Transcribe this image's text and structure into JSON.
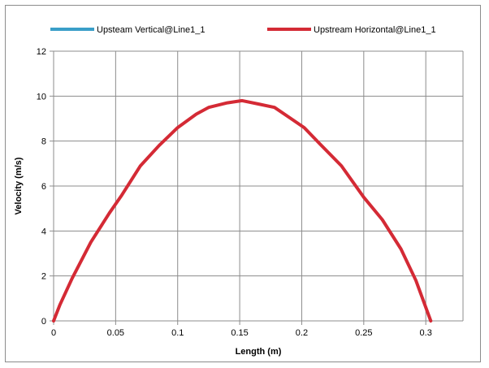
{
  "chart_data": {
    "type": "line",
    "title": "",
    "xlabel": "Length (m)",
    "ylabel": "Velocity (m/s)",
    "xlim": [
      0,
      0.33
    ],
    "ylim": [
      0,
      12
    ],
    "xticks": [
      0,
      0.05,
      0.1,
      0.15,
      0.2,
      0.25,
      0.3
    ],
    "xtick_labels": [
      "0",
      "0.05",
      "0.1",
      "0.15",
      "0.2",
      "0.25",
      "0.3"
    ],
    "yticks": [
      0,
      2,
      4,
      6,
      8,
      10,
      12
    ],
    "ytick_labels": [
      "0",
      "2",
      "4",
      "6",
      "8",
      "10",
      "12"
    ],
    "grid": true,
    "legend_position": "top",
    "series": [
      {
        "name": "Upsteam Vertical@Line1_1",
        "color": "#3a9fc8",
        "x": [],
        "y": []
      },
      {
        "name": "Upstream Horizontal@Line1_1",
        "color": "#d42a35",
        "x": [
          0,
          0.005,
          0.015,
          0.03,
          0.045,
          0.055,
          0.07,
          0.085,
          0.1,
          0.115,
          0.125,
          0.14,
          0.152,
          0.165,
          0.178,
          0.19,
          0.202,
          0.215,
          0.232,
          0.25,
          0.265,
          0.28,
          0.292,
          0.304
        ],
        "y": [
          0,
          0.7,
          1.9,
          3.5,
          4.8,
          5.6,
          6.9,
          7.8,
          8.6,
          9.2,
          9.5,
          9.7,
          9.8,
          9.65,
          9.5,
          9.05,
          8.6,
          7.85,
          6.9,
          5.5,
          4.5,
          3.2,
          1.8,
          0
        ]
      }
    ]
  }
}
